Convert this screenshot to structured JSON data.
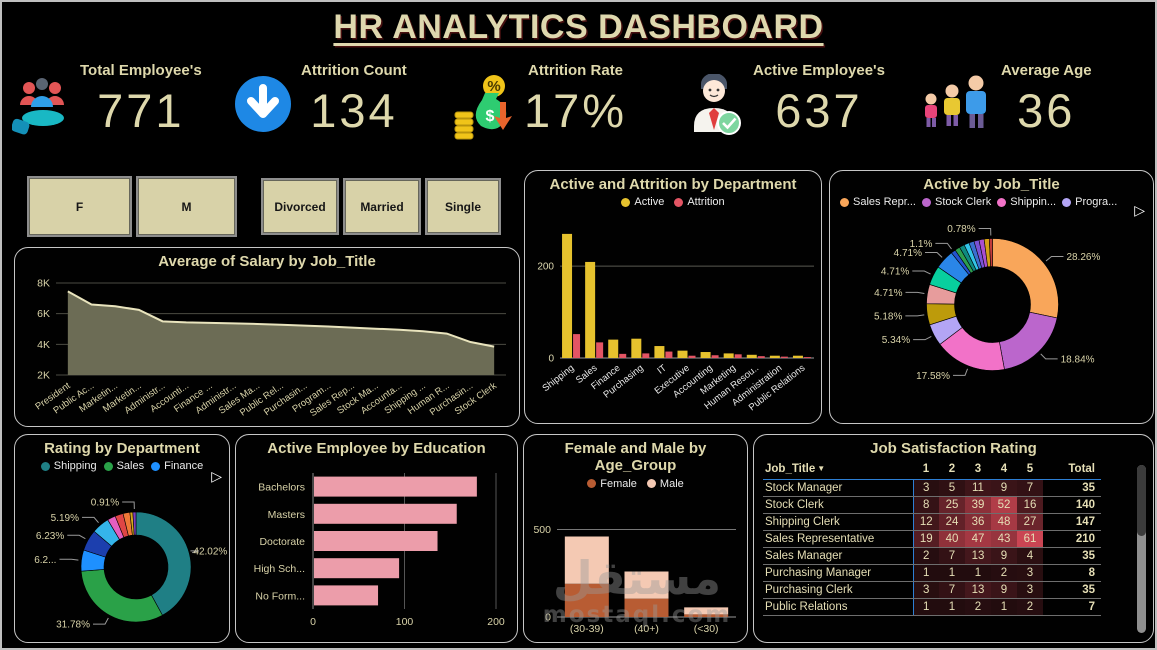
{
  "page": {
    "title": "HR ANALYTICS DASHBOARD"
  },
  "kpis": [
    {
      "label": "Total Employee's",
      "value": "771",
      "icon": "people-hand-icon"
    },
    {
      "label": "Attrition Count",
      "value": "134",
      "icon": "down-arrow-circle-icon"
    },
    {
      "label": "Attrition Rate",
      "value": "17%",
      "icon": "money-attrition-icon"
    },
    {
      "label": "Active Employee's",
      "value": "637",
      "icon": "employee-check-icon"
    },
    {
      "label": "Average Age",
      "value": "36",
      "icon": "age-group-icon"
    }
  ],
  "filters": {
    "gender": [
      "F",
      "M"
    ],
    "marital_status": [
      "Divorced",
      "Married",
      "Single"
    ]
  },
  "ui": {
    "legend_more": "▷",
    "sort_icon": "▼"
  },
  "watermark": {
    "arabic": "مستقل",
    "latin": "mostaql.com"
  },
  "chart_data": [
    {
      "id": "salary",
      "type": "area",
      "title": "Average of Salary by Job_Title",
      "categories": [
        "President",
        "Public Ac...",
        "Marketin...",
        "Marketin...",
        "Administr...",
        "Accounti...",
        "Finance ...",
        "Administr...",
        "Sales Ma...",
        "Public Rel...",
        "Purchasin...",
        "Program...",
        "Sales Rep...",
        "Stock Ma...",
        "Accounta...",
        "Shipping ...",
        "Human R...",
        "Purchasin...",
        "Stock Clerk"
      ],
      "values": [
        7450,
        6600,
        6480,
        6250,
        5500,
        5430,
        5400,
        5370,
        5330,
        5280,
        5220,
        5160,
        5090,
        5020,
        4950,
        4850,
        4700,
        4150,
        3850
      ],
      "ylim": [
        2000,
        8000
      ],
      "yticks": [
        2000,
        4000,
        6000,
        8000
      ],
      "ytick_labels": [
        "2K",
        "4K",
        "6K",
        "8K"
      ],
      "colors": {
        "fill": "#6c6c55",
        "line": "#e9e4bd"
      },
      "grid": true
    },
    {
      "id": "dept",
      "type": "bar",
      "title": "Active and Attrition by Department",
      "categories": [
        "Shipping",
        "Sales",
        "Finance",
        "Purchasing",
        "IT",
        "Executive",
        "Accounting",
        "Marketing",
        "Human Resou..",
        "Administration",
        "Public Relations"
      ],
      "series": [
        {
          "name": "Active",
          "color": "#e6c22e",
          "values": [
            270,
            209,
            40,
            42,
            26,
            16,
            13,
            10,
            7,
            5,
            5
          ]
        },
        {
          "name": "Attrition",
          "color": "#e35564",
          "values": [
            52,
            34,
            9,
            10,
            14,
            5,
            6,
            8,
            4,
            3,
            2
          ]
        }
      ],
      "ylim": [
        0,
        285
      ],
      "yticks": [
        0,
        200
      ],
      "legend_position": "top"
    },
    {
      "id": "jobtitle",
      "type": "donut",
      "title": "Active by Job_Title",
      "legend": [
        {
          "name": "Sales Repr...",
          "color": "#f9a65a"
        },
        {
          "name": "Stock Clerk",
          "color": "#bb66cc"
        },
        {
          "name": "Shippin...",
          "color": "#f272c8"
        },
        {
          "name": "Progra...",
          "color": "#b3a5f5"
        }
      ],
      "legend_overflow": true,
      "slices": [
        {
          "value": 28.26,
          "color": "#f9a65a",
          "label": "28.26%"
        },
        {
          "value": 18.84,
          "color": "#bb66cc",
          "label": "18.84%"
        },
        {
          "value": 17.58,
          "color": "#f272c8",
          "label": "17.58%"
        },
        {
          "value": 5.34,
          "color": "#b3a5f5",
          "label": "5.34%"
        },
        {
          "value": 5.18,
          "color": "#bd9b0b",
          "label": "5.18%"
        },
        {
          "value": 4.71,
          "color": "#e79c9c",
          "label": "4.71%"
        },
        {
          "value": 4.71,
          "color": "#08cf9e",
          "label": "4.71%"
        },
        {
          "value": 4.71,
          "color": "#2a86e8",
          "label": "4.71%"
        },
        {
          "value": 1.1,
          "color": "#2353cf",
          "label": "1.1%"
        },
        {
          "value": 1.26,
          "color": "#2d9e4f"
        },
        {
          "value": 1.26,
          "color": "#0e8a80"
        },
        {
          "value": 1.26,
          "color": "#33c3e8"
        },
        {
          "value": 1.26,
          "color": "#3a6fd0"
        },
        {
          "value": 1.25,
          "color": "#7a52d5"
        },
        {
          "value": 1.25,
          "color": "#a84fd0"
        },
        {
          "value": 1.25,
          "color": "#d4a017"
        },
        {
          "value": 0.78,
          "color": "#c23b3b",
          "label": "0.78%"
        }
      ]
    },
    {
      "id": "rating",
      "type": "donut",
      "title": "Rating by Department",
      "legend": [
        {
          "name": "Shipping",
          "color": "#1f7f85"
        },
        {
          "name": "Sales",
          "color": "#2aa148"
        },
        {
          "name": "Finance",
          "color": "#1e90ff"
        }
      ],
      "legend_overflow": true,
      "slices": [
        {
          "value": 42.02,
          "color": "#1f7f85",
          "label": "42.02%"
        },
        {
          "value": 31.78,
          "color": "#2aa148",
          "label": "31.78%"
        },
        {
          "value": 6.2,
          "color": "#1e90ff",
          "label": "6.2..."
        },
        {
          "value": 6.23,
          "color": "#1c3fae",
          "label": "6.23%"
        },
        {
          "value": 5.19,
          "color": "#35b5ea",
          "label": "5.19%"
        },
        {
          "value": 2.4,
          "color": "#e45fc0"
        },
        {
          "value": 2.4,
          "color": "#e04545"
        },
        {
          "value": 2.0,
          "color": "#f07838"
        },
        {
          "value": 0.87,
          "color": "#d5a91b"
        },
        {
          "value": 0.91,
          "color": "#7b3fbf",
          "label": "0.91%"
        }
      ]
    },
    {
      "id": "education",
      "type": "hbar",
      "title": "Active Employee by Education",
      "categories": [
        "Bachelors",
        "Masters",
        "Doctorate",
        "High Sch...",
        "No Form..."
      ],
      "values": [
        178,
        156,
        135,
        93,
        70
      ],
      "xlim": [
        0,
        200
      ],
      "xticks": [
        0,
        100,
        200
      ],
      "color": "#ec9daa"
    },
    {
      "id": "age",
      "type": "stacked-bar",
      "title": "Female and Male by Age_Group",
      "categories": [
        "(30-39)",
        "(40+)",
        "(<30)"
      ],
      "series": [
        {
          "name": "Female",
          "color": "#b85c33",
          "values": [
            190,
            105,
            15
          ]
        },
        {
          "name": "Male",
          "color": "#f4c9b3",
          "values": [
            270,
            155,
            40
          ]
        }
      ],
      "ylim": [
        0,
        560
      ],
      "yticks": [
        0,
        500
      ]
    },
    {
      "id": "satisfaction",
      "type": "table",
      "title": "Job Satisfaction Rating",
      "columns": [
        "Job_Title",
        "1",
        "2",
        "3",
        "4",
        "5",
        "Total"
      ],
      "rows": [
        [
          "Stock Manager",
          3,
          5,
          11,
          9,
          7,
          35
        ],
        [
          "Stock Clerk",
          8,
          25,
          39,
          52,
          16,
          140
        ],
        [
          "Shipping Clerk",
          12,
          24,
          36,
          48,
          27,
          147
        ],
        [
          "Sales Representative",
          19,
          40,
          47,
          43,
          61,
          210
        ],
        [
          "Sales Manager",
          2,
          7,
          13,
          9,
          4,
          35
        ],
        [
          "Purchasing Manager",
          1,
          1,
          1,
          2,
          3,
          8
        ],
        [
          "Purchasing Clerk",
          3,
          7,
          13,
          9,
          3,
          35
        ],
        [
          "Public Relations",
          1,
          1,
          2,
          1,
          2,
          7
        ]
      ],
      "heat_color": [
        213,
        73,
        87
      ],
      "heat_max": 61
    }
  ]
}
